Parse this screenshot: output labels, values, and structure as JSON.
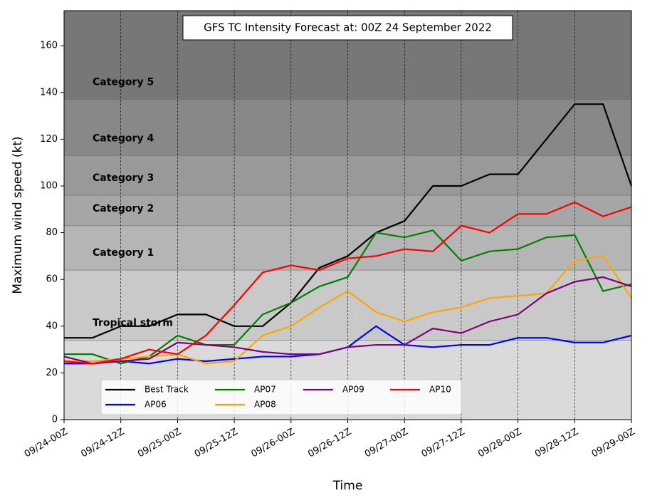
{
  "chart_data": {
    "type": "line",
    "title": "GFS TC Intensity Forecast at: 00Z 24 September 2022",
    "x_label": "Time",
    "y_label": "Maximum wind speed (kt)",
    "categories": [
      "09/24-00Z",
      null,
      "09/24-12Z",
      null,
      "09/25-00Z",
      null,
      "09/25-12Z",
      null,
      "09/26-00Z",
      null,
      "09/26-12Z",
      null,
      "09/27-00Z",
      null,
      "09/27-12Z",
      null,
      "09/28-00Z",
      null,
      "09/28-12Z",
      null,
      "09/29-00Z"
    ],
    "ylim": [
      0,
      175
    ],
    "yticks": [
      0,
      20,
      40,
      60,
      80,
      100,
      120,
      140,
      160
    ],
    "grid": true,
    "legend": "lower left",
    "bands": [
      {
        "name": "Tropical storm",
        "from": 34,
        "to": 64,
        "color": "#c9c9c9"
      },
      {
        "name": "Category 1",
        "from": 64,
        "to": 83,
        "color": "#b5b5b5"
      },
      {
        "name": "Category 2",
        "from": 83,
        "to": 96,
        "color": "#a6a6a6"
      },
      {
        "name": "Category 3",
        "from": 96,
        "to": 113,
        "color": "#999999"
      },
      {
        "name": "Category 4",
        "from": 113,
        "to": 137,
        "color": "#888888"
      },
      {
        "name": "Category 5",
        "from": 137,
        "to": 175,
        "color": "#777777"
      }
    ],
    "series": [
      {
        "name": "Best Track",
        "color": "#000000",
        "values": [
          35,
          35,
          40,
          40,
          45,
          45,
          40,
          40,
          50,
          65,
          70,
          80,
          85,
          100,
          100,
          105,
          105,
          120,
          135,
          135,
          100
        ]
      },
      {
        "name": "AP06",
        "color": "#0000ff",
        "values": [
          24,
          24,
          25,
          24,
          26,
          25,
          26,
          27,
          27,
          28,
          31,
          40,
          32,
          31,
          32,
          32,
          35,
          35,
          33,
          33,
          36
        ]
      },
      {
        "name": "AP07",
        "color": "#008000",
        "values": [
          28,
          28,
          24,
          27,
          36,
          32,
          32,
          45,
          50,
          57,
          61,
          80,
          78,
          81,
          68,
          72,
          73,
          78,
          79,
          55,
          58
        ]
      },
      {
        "name": "AP08",
        "color": "#ffa500",
        "values": [
          25,
          25,
          26,
          27,
          28,
          24,
          25,
          36,
          40,
          48,
          55,
          46,
          42,
          46,
          48,
          52,
          53,
          54,
          68,
          70,
          52
        ]
      },
      {
        "name": "AP09",
        "color": "#800080",
        "values": [
          27,
          24,
          25,
          26,
          33,
          32,
          31,
          29,
          28,
          28,
          31,
          32,
          32,
          39,
          37,
          42,
          45,
          54,
          59,
          61,
          57
        ]
      },
      {
        "name": "AP10",
        "color": "#ff0000",
        "values": [
          25,
          24,
          26,
          30,
          28,
          36,
          49,
          63,
          66,
          64,
          69,
          70,
          73,
          72,
          83,
          80,
          88,
          88,
          93,
          87,
          91
        ]
      }
    ]
  }
}
